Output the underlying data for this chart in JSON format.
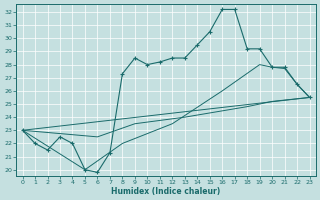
{
  "xlabel": "Humidex (Indice chaleur)",
  "xlim_min": -0.5,
  "xlim_max": 23.5,
  "ylim_min": 19.5,
  "ylim_max": 32.6,
  "yticks": [
    20,
    21,
    22,
    23,
    24,
    25,
    26,
    27,
    28,
    29,
    30,
    31,
    32
  ],
  "xticks": [
    0,
    1,
    2,
    3,
    4,
    5,
    6,
    7,
    8,
    9,
    10,
    11,
    12,
    13,
    14,
    15,
    16,
    17,
    18,
    19,
    20,
    21,
    22,
    23
  ],
  "bg_color": "#c5e0e0",
  "line_color": "#1a6b6b",
  "grid_color": "#b0d0d0",
  "curve_main_x": [
    0,
    1,
    2,
    3,
    4,
    5,
    6,
    7,
    8,
    9,
    10,
    11,
    12,
    13,
    14,
    15,
    16,
    17,
    18,
    19,
    20,
    21,
    22,
    23
  ],
  "curve_main_y": [
    23.0,
    22.0,
    21.5,
    22.5,
    22.0,
    20.0,
    19.8,
    21.3,
    27.3,
    28.5,
    28.0,
    28.2,
    28.5,
    28.5,
    29.5,
    30.5,
    32.2,
    32.2,
    29.2,
    29.2,
    27.8,
    27.8,
    26.5,
    25.5
  ],
  "curve2_x": [
    0,
    23
  ],
  "curve2_y": [
    23.0,
    25.5
  ],
  "curve3_x": [
    0,
    6,
    9,
    13,
    18,
    20,
    23
  ],
  "curve3_y": [
    23.0,
    22.5,
    23.5,
    24.0,
    24.8,
    25.2,
    25.5
  ],
  "curve4_x": [
    0,
    5,
    8,
    12,
    16,
    19,
    20,
    21,
    22,
    23
  ],
  "curve4_y": [
    23.0,
    20.0,
    22.0,
    23.5,
    26.0,
    28.0,
    27.8,
    27.7,
    26.5,
    25.5
  ]
}
